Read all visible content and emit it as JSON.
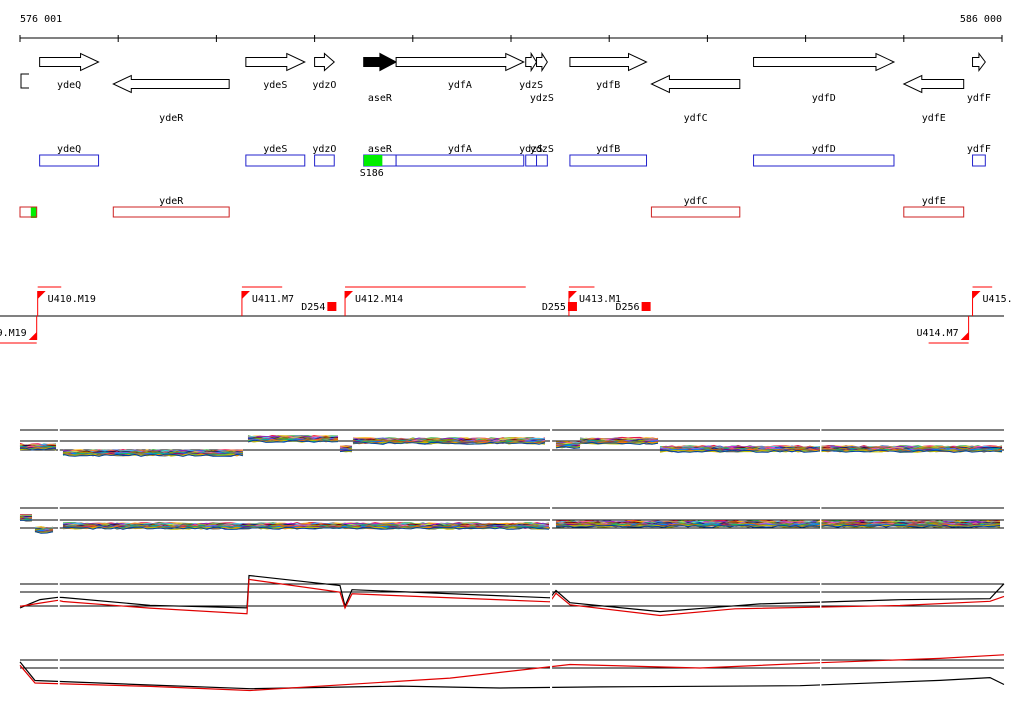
{
  "ruler": {
    "start_label": "576 001",
    "end_label": "586 000"
  },
  "colors": {
    "gene_forward": "#2222cc",
    "gene_reverse": "#cc2222",
    "highlight_green": "#00ee00",
    "promoter_red": "#ff0000",
    "trace_black": "#000000",
    "trace_red": "#e00000"
  },
  "genes": [
    {
      "name": "ydeQ",
      "strand": "+",
      "start": 576200,
      "end": 576800,
      "label_row": "top"
    },
    {
      "name": "ydeR",
      "strand": "-",
      "start": 576950,
      "end": 578130,
      "label_row": "bottom"
    },
    {
      "name": "ydeS",
      "strand": "+",
      "start": 578300,
      "end": 578900,
      "label_row": "top"
    },
    {
      "name": "ydzO",
      "strand": "+",
      "start": 579000,
      "end": 579200,
      "label_row": "top"
    },
    {
      "name": "aseR",
      "strand": "+",
      "start": 579500,
      "end": 579830,
      "filled": true,
      "label_row": "bottom"
    },
    {
      "name": "ydfA",
      "strand": "+",
      "start": 579830,
      "end": 581130,
      "label_row": "top"
    },
    {
      "name": "ydzS",
      "strand": "+",
      "start": 581150,
      "end": 581260,
      "label_row": "top"
    },
    {
      "name": "ydzS",
      "strand": "+",
      "start": 581260,
      "end": 581370,
      "label_row": "bottom"
    },
    {
      "name": "ydfB",
      "strand": "+",
      "start": 581600,
      "end": 582380,
      "label_row": "top"
    },
    {
      "name": "ydfC",
      "strand": "-",
      "start": 582430,
      "end": 583330,
      "label_row": "bottom"
    },
    {
      "name": "ydfD",
      "strand": "+",
      "start": 583470,
      "end": 584900,
      "label_row": "bottom"
    },
    {
      "name": "ydfE",
      "strand": "-",
      "start": 585000,
      "end": 585610,
      "label_row": "bottom"
    },
    {
      "name": "ydfF",
      "strand": "+",
      "start": 585700,
      "end": 585830,
      "label_row": "bottom"
    }
  ],
  "boxes_forward": [
    {
      "label": "ydeQ",
      "start": 576200,
      "end": 576800
    },
    {
      "label": "ydeS",
      "start": 578300,
      "end": 578900
    },
    {
      "label": "ydzO",
      "start": 579000,
      "end": 579200
    },
    {
      "label": "aseR",
      "start": 579500,
      "end": 579830
    },
    {
      "label": "ydfA",
      "start": 579830,
      "end": 581130
    },
    {
      "label": "ydzS",
      "start": 581150,
      "end": 581260
    },
    {
      "label": "ydzS",
      "start": 581260,
      "end": 581370
    },
    {
      "label": "ydfB",
      "start": 581600,
      "end": 582380
    },
    {
      "label": "ydfD",
      "start": 583470,
      "end": 584900
    },
    {
      "label": "ydfF",
      "start": 585700,
      "end": 585830
    }
  ],
  "boxes_reverse": [
    {
      "label": "",
      "start": 576000,
      "end": 576170
    },
    {
      "label": "ydeR",
      "start": 576950,
      "end": 578130
    },
    {
      "label": "ydfC",
      "start": 582430,
      "end": 583330
    },
    {
      "label": "ydfE",
      "start": 585000,
      "end": 585610
    }
  ],
  "green_marks": [
    {
      "label": "S186",
      "start": 579500,
      "end": 579690
    },
    {
      "label": "",
      "start": 576110,
      "end": 576170
    }
  ],
  "promoters_forward": [
    {
      "label": "U410.M19",
      "pos": 576180
    },
    {
      "label": "U411.M7",
      "pos": 578260
    },
    {
      "label": "U412.M14",
      "pos": 579310
    },
    {
      "label": "U413.M1",
      "pos": 581590
    },
    {
      "label": "U415.",
      "pos": 585700
    }
  ],
  "promoters_reverse": [
    {
      "label": "9.M19",
      "pos": 576170
    },
    {
      "label": "U414.M7",
      "pos": 585660
    }
  ],
  "terminators": [
    {
      "label": "D254",
      "pos": 579130
    },
    {
      "label": "D255",
      "pos": 581580
    },
    {
      "label": "D256",
      "pos": 582330
    }
  ],
  "tracks": [
    {
      "name": "expression-track-1",
      "mode": "multi",
      "series_count": 28
    },
    {
      "name": "expression-track-2",
      "mode": "multi",
      "series_count": 28
    },
    {
      "name": "expression-track-3",
      "mode": "pair"
    },
    {
      "name": "expression-track-4",
      "mode": "pair"
    }
  ]
}
